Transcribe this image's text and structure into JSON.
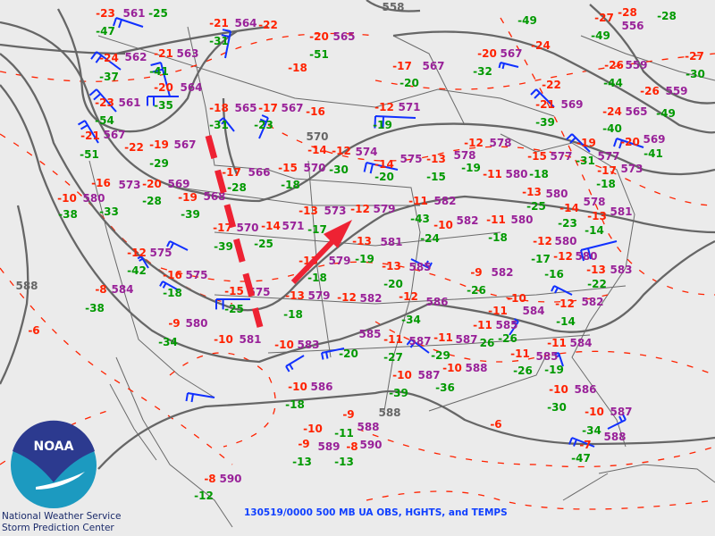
{
  "title": "130519/0000 500 MB UA OBS, HGHTS, and TEMPS",
  "credits": {
    "line1": "National Weather Service",
    "line2": "Storm Prediction Center"
  },
  "logo": {
    "text": "NOAA"
  },
  "colors": {
    "temperature": "#ff2200",
    "height": "#992299",
    "dewpoint_depression": "#009900",
    "contour": "#666666",
    "isotherm": "#ff2200",
    "wind_barb": "#1030ff",
    "annotation": "#ee2233",
    "title": "#1040ff"
  },
  "contour_labels": [
    "558",
    "570",
    "588",
    "588",
    "590"
  ],
  "station_labels": [
    {
      "text": "-23",
      "kind": "temp"
    },
    {
      "text": "561",
      "kind": "height"
    },
    {
      "text": "-25",
      "kind": "dewpt"
    },
    {
      "text": "-47",
      "kind": "dewpt"
    },
    {
      "text": "-24",
      "kind": "temp"
    },
    {
      "text": "562",
      "kind": "height"
    },
    {
      "text": "-37",
      "kind": "dewpt"
    },
    {
      "text": "-21",
      "kind": "temp"
    },
    {
      "text": "563",
      "kind": "height"
    },
    {
      "text": "-41",
      "kind": "dewpt"
    },
    {
      "text": "-20",
      "kind": "temp"
    },
    {
      "text": "564",
      "kind": "height"
    },
    {
      "text": "-35",
      "kind": "dewpt"
    },
    {
      "text": "-23",
      "kind": "temp"
    },
    {
      "text": "561",
      "kind": "height"
    },
    {
      "text": "-54",
      "kind": "dewpt"
    },
    {
      "text": "-21",
      "kind": "temp"
    },
    {
      "text": "567",
      "kind": "height"
    },
    {
      "text": "-51",
      "kind": "dewpt"
    },
    {
      "text": "-22",
      "kind": "temp"
    },
    {
      "text": "-19",
      "kind": "temp"
    },
    {
      "text": "567",
      "kind": "height"
    },
    {
      "text": "-29",
      "kind": "dewpt"
    },
    {
      "text": "-21",
      "kind": "temp"
    },
    {
      "text": "564",
      "kind": "height"
    },
    {
      "text": "-22",
      "kind": "temp"
    },
    {
      "text": "-31",
      "kind": "dewpt"
    },
    {
      "text": "-20",
      "kind": "temp"
    },
    {
      "text": "565",
      "kind": "height"
    },
    {
      "text": "-51",
      "kind": "dewpt"
    },
    {
      "text": "-18",
      "kind": "temp"
    },
    {
      "text": "-18",
      "kind": "temp"
    },
    {
      "text": "565",
      "kind": "height"
    },
    {
      "text": "-17",
      "kind": "temp"
    },
    {
      "text": "567",
      "kind": "height"
    },
    {
      "text": "-16",
      "kind": "temp"
    },
    {
      "text": "-31",
      "kind": "dewpt"
    },
    {
      "text": "-23",
      "kind": "dewpt"
    },
    {
      "text": "-14",
      "kind": "temp"
    },
    {
      "text": "-12",
      "kind": "temp"
    },
    {
      "text": "574",
      "kind": "height"
    },
    {
      "text": "-17",
      "kind": "temp"
    },
    {
      "text": "566",
      "kind": "height"
    },
    {
      "text": "-15",
      "kind": "temp"
    },
    {
      "text": "570",
      "kind": "height"
    },
    {
      "text": "-30",
      "kind": "dewpt"
    },
    {
      "text": "-17",
      "kind": "temp"
    },
    {
      "text": "567",
      "kind": "height"
    },
    {
      "text": "-20",
      "kind": "dewpt"
    },
    {
      "text": "-20",
      "kind": "temp"
    },
    {
      "text": "567",
      "kind": "height"
    },
    {
      "text": "-32",
      "kind": "dewpt"
    },
    {
      "text": "-49",
      "kind": "dewpt"
    },
    {
      "text": "-24",
      "kind": "temp"
    },
    {
      "text": "-22",
      "kind": "temp"
    },
    {
      "text": "-21",
      "kind": "temp"
    },
    {
      "text": "569",
      "kind": "height"
    },
    {
      "text": "-39",
      "kind": "dewpt"
    },
    {
      "text": "-27",
      "kind": "temp"
    },
    {
      "text": "-28",
      "kind": "temp"
    },
    {
      "text": "556",
      "kind": "height"
    },
    {
      "text": "-28",
      "kind": "dewpt"
    },
    {
      "text": "-49",
      "kind": "dewpt"
    },
    {
      "text": "-26",
      "kind": "temp"
    },
    {
      "text": "559",
      "kind": "height"
    },
    {
      "text": "-44",
      "kind": "dewpt"
    },
    {
      "text": "-27",
      "kind": "temp"
    },
    {
      "text": "-30",
      "kind": "dewpt"
    },
    {
      "text": "-26",
      "kind": "temp"
    },
    {
      "text": "559",
      "kind": "height"
    },
    {
      "text": "-24",
      "kind": "temp"
    },
    {
      "text": "565",
      "kind": "height"
    },
    {
      "text": "-49",
      "kind": "dewpt"
    },
    {
      "text": "-12",
      "kind": "temp"
    },
    {
      "text": "571",
      "kind": "height"
    },
    {
      "text": "-19",
      "kind": "dewpt"
    },
    {
      "text": "-40",
      "kind": "dewpt"
    },
    {
      "text": "-20",
      "kind": "temp"
    },
    {
      "text": "569",
      "kind": "height"
    },
    {
      "text": "-19",
      "kind": "temp"
    },
    {
      "text": "577",
      "kind": "height"
    },
    {
      "text": "-12",
      "kind": "temp"
    },
    {
      "text": "578",
      "kind": "height"
    },
    {
      "text": "-14",
      "kind": "temp"
    },
    {
      "text": "575",
      "kind": "height"
    },
    {
      "text": "-13",
      "kind": "temp"
    },
    {
      "text": "578",
      "kind": "height"
    },
    {
      "text": "-19",
      "kind": "dewpt"
    },
    {
      "text": "-15",
      "kind": "temp"
    },
    {
      "text": "577",
      "kind": "height"
    },
    {
      "text": "-31",
      "kind": "dewpt"
    },
    {
      "text": "-17",
      "kind": "temp"
    },
    {
      "text": "573",
      "kind": "height"
    },
    {
      "text": "-41",
      "kind": "dewpt"
    },
    {
      "text": "-20",
      "kind": "dewpt"
    },
    {
      "text": "-15",
      "kind": "dewpt"
    },
    {
      "text": "-11",
      "kind": "temp"
    },
    {
      "text": "580",
      "kind": "height"
    },
    {
      "text": "-18",
      "kind": "dewpt"
    },
    {
      "text": "-18",
      "kind": "dewpt"
    },
    {
      "text": "-16",
      "kind": "temp"
    },
    {
      "text": "573",
      "kind": "height"
    },
    {
      "text": "-20",
      "kind": "temp"
    },
    {
      "text": "569",
      "kind": "height"
    },
    {
      "text": "-19",
      "kind": "temp"
    },
    {
      "text": "568",
      "kind": "height"
    },
    {
      "text": "-28",
      "kind": "dewpt"
    },
    {
      "text": "-10",
      "kind": "temp"
    },
    {
      "text": "580",
      "kind": "height"
    },
    {
      "text": "-33",
      "kind": "dewpt"
    },
    {
      "text": "-28",
      "kind": "dewpt"
    },
    {
      "text": "-38",
      "kind": "dewpt"
    },
    {
      "text": "-39",
      "kind": "dewpt"
    },
    {
      "text": "-18",
      "kind": "dewpt"
    },
    {
      "text": "-13",
      "kind": "temp"
    },
    {
      "text": "573",
      "kind": "height"
    },
    {
      "text": "-17",
      "kind": "temp"
    },
    {
      "text": "570",
      "kind": "height"
    },
    {
      "text": "-14",
      "kind": "temp"
    },
    {
      "text": "571",
      "kind": "height"
    },
    {
      "text": "-17",
      "kind": "dewpt"
    },
    {
      "text": "-39",
      "kind": "dewpt"
    },
    {
      "text": "-25",
      "kind": "dewpt"
    },
    {
      "text": "-12",
      "kind": "temp"
    },
    {
      "text": "575",
      "kind": "height"
    },
    {
      "text": "-42",
      "kind": "dewpt"
    },
    {
      "text": "-16",
      "kind": "temp"
    },
    {
      "text": "575",
      "kind": "height"
    },
    {
      "text": "-13",
      "kind": "temp"
    },
    {
      "text": "579",
      "kind": "height"
    },
    {
      "text": "-19",
      "kind": "dewpt"
    },
    {
      "text": "-8",
      "kind": "temp"
    },
    {
      "text": "584",
      "kind": "height"
    },
    {
      "text": "-18",
      "kind": "dewpt"
    },
    {
      "text": "-15",
      "kind": "temp"
    },
    {
      "text": "575",
      "kind": "height"
    },
    {
      "text": "-13",
      "kind": "temp"
    },
    {
      "text": "579",
      "kind": "height"
    },
    {
      "text": "-18",
      "kind": "dewpt"
    },
    {
      "text": "-12",
      "kind": "temp"
    },
    {
      "text": "-38",
      "kind": "dewpt"
    },
    {
      "text": "-9",
      "kind": "temp"
    },
    {
      "text": "580",
      "kind": "height"
    },
    {
      "text": "-25",
      "kind": "dewpt"
    },
    {
      "text": "-18",
      "kind": "dewpt"
    },
    {
      "text": "-6",
      "kind": "temp"
    },
    {
      "text": "-34",
      "kind": "dewpt"
    },
    {
      "text": "-10",
      "kind": "temp"
    },
    {
      "text": "581",
      "kind": "height"
    },
    {
      "text": "-10",
      "kind": "temp"
    },
    {
      "text": "583",
      "kind": "height"
    },
    {
      "text": "-20",
      "kind": "dewpt"
    },
    {
      "text": "-13",
      "kind": "temp"
    },
    {
      "text": "580",
      "kind": "height"
    },
    {
      "text": "-11",
      "kind": "temp"
    },
    {
      "text": "582",
      "kind": "height"
    },
    {
      "text": "-12",
      "kind": "temp"
    },
    {
      "text": "579",
      "kind": "height"
    },
    {
      "text": "-43",
      "kind": "dewpt"
    },
    {
      "text": "-10",
      "kind": "temp"
    },
    {
      "text": "582",
      "kind": "height"
    },
    {
      "text": "-11",
      "kind": "temp"
    },
    {
      "text": "580",
      "kind": "height"
    },
    {
      "text": "-25",
      "kind": "dewpt"
    },
    {
      "text": "-14",
      "kind": "temp"
    },
    {
      "text": "578",
      "kind": "height"
    },
    {
      "text": "-13",
      "kind": "temp"
    },
    {
      "text": "581",
      "kind": "height"
    },
    {
      "text": "-23",
      "kind": "dewpt"
    },
    {
      "text": "-14",
      "kind": "dewpt"
    },
    {
      "text": "-24",
      "kind": "dewpt"
    },
    {
      "text": "-18",
      "kind": "dewpt"
    },
    {
      "text": "-12",
      "kind": "temp"
    },
    {
      "text": "580",
      "kind": "height"
    },
    {
      "text": "-13",
      "kind": "temp"
    },
    {
      "text": "581",
      "kind": "height"
    },
    {
      "text": "-17",
      "kind": "dewpt"
    },
    {
      "text": "-12",
      "kind": "temp"
    },
    {
      "text": "580",
      "kind": "height"
    },
    {
      "text": "-13",
      "kind": "temp"
    },
    {
      "text": "583",
      "kind": "height"
    },
    {
      "text": "-13",
      "kind": "temp"
    },
    {
      "text": "585",
      "kind": "height"
    },
    {
      "text": "-9",
      "kind": "temp"
    },
    {
      "text": "582",
      "kind": "height"
    },
    {
      "text": "-16",
      "kind": "dewpt"
    },
    {
      "text": "-20",
      "kind": "dewpt"
    },
    {
      "text": "-22",
      "kind": "dewpt"
    },
    {
      "text": "-12",
      "kind": "temp"
    },
    {
      "text": "586",
      "kind": "height"
    },
    {
      "text": "-26",
      "kind": "dewpt"
    },
    {
      "text": "-10",
      "kind": "temp"
    },
    {
      "text": "582",
      "kind": "height"
    },
    {
      "text": "-12",
      "kind": "temp"
    },
    {
      "text": "-11",
      "kind": "temp"
    },
    {
      "text": "584",
      "kind": "height"
    },
    {
      "text": "582",
      "kind": "height"
    },
    {
      "text": "-34",
      "kind": "dewpt"
    },
    {
      "text": "-11",
      "kind": "temp"
    },
    {
      "text": "585",
      "kind": "height"
    },
    {
      "text": "-26",
      "kind": "dewpt"
    },
    {
      "text": "-14",
      "kind": "dewpt"
    },
    {
      "text": "-11",
      "kind": "temp"
    },
    {
      "text": "587",
      "kind": "height"
    },
    {
      "text": "-11",
      "kind": "temp"
    },
    {
      "text": "587",
      "kind": "height"
    },
    {
      "text": "26",
      "kind": "dewpt"
    },
    {
      "text": "585",
      "kind": "height"
    },
    {
      "text": "-11",
      "kind": "temp"
    },
    {
      "text": "584",
      "kind": "height"
    },
    {
      "text": "-29",
      "kind": "dewpt"
    },
    {
      "text": "-11",
      "kind": "temp"
    },
    {
      "text": "585",
      "kind": "height"
    },
    {
      "text": "-27",
      "kind": "dewpt"
    },
    {
      "text": "-10",
      "kind": "temp"
    },
    {
      "text": "587",
      "kind": "height"
    },
    {
      "text": "-10",
      "kind": "temp"
    },
    {
      "text": "588",
      "kind": "height"
    },
    {
      "text": "-36",
      "kind": "dewpt"
    },
    {
      "text": "-39",
      "kind": "dewpt"
    },
    {
      "text": "-26",
      "kind": "dewpt"
    },
    {
      "text": "-19",
      "kind": "dewpt"
    },
    {
      "text": "-10",
      "kind": "temp"
    },
    {
      "text": "586",
      "kind": "height"
    },
    {
      "text": "-30",
      "kind": "dewpt"
    },
    {
      "text": "-10",
      "kind": "temp"
    },
    {
      "text": "587",
      "kind": "height"
    },
    {
      "text": "-34",
      "kind": "dewpt"
    },
    {
      "text": "-7",
      "kind": "temp"
    },
    {
      "text": "588",
      "kind": "height"
    },
    {
      "text": "-47",
      "kind": "dewpt"
    },
    {
      "text": "588",
      "kind": "height"
    },
    {
      "text": "590",
      "kind": "height"
    },
    {
      "text": "-6",
      "kind": "temp"
    },
    {
      "text": "-10",
      "kind": "temp"
    },
    {
      "text": "586",
      "kind": "height"
    },
    {
      "text": "-18",
      "kind": "dewpt"
    },
    {
      "text": "-9",
      "kind": "temp"
    },
    {
      "text": "-10",
      "kind": "temp"
    },
    {
      "text": "-11",
      "kind": "dewpt"
    },
    {
      "text": "-9",
      "kind": "temp"
    },
    {
      "text": "589",
      "kind": "height"
    },
    {
      "text": "-8",
      "kind": "temp"
    },
    {
      "text": "-13",
      "kind": "dewpt"
    },
    {
      "text": "-13",
      "kind": "dewpt"
    },
    {
      "text": "-8",
      "kind": "temp"
    },
    {
      "text": "590",
      "kind": "height"
    },
    {
      "text": "-12",
      "kind": "dewpt"
    }
  ]
}
